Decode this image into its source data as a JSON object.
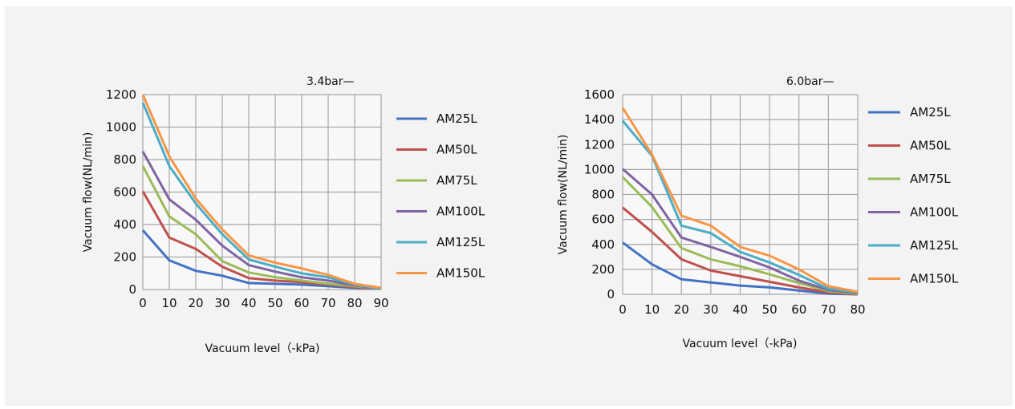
{
  "chart_data": [
    {
      "type": "line",
      "annotation": "3.4bar—",
      "xlabel": "Vacuum level（-kPa)",
      "ylabel": "Vacuum flow(NL/min)",
      "x": [
        0,
        10,
        20,
        30,
        40,
        50,
        60,
        70,
        80,
        90
      ],
      "xlim": [
        0,
        90
      ],
      "ylim": [
        0,
        1200
      ],
      "yticks": [
        0,
        200,
        400,
        600,
        800,
        1000,
        1200
      ],
      "grid": true,
      "legend_position": "right",
      "series": [
        {
          "name": "AM25L",
          "color": "#4472c4",
          "values": [
            365,
            180,
            115,
            85,
            40,
            35,
            30,
            20,
            10,
            5
          ]
        },
        {
          "name": "AM50L",
          "color": "#c0504d",
          "values": [
            605,
            320,
            250,
            140,
            70,
            55,
            45,
            30,
            15,
            5
          ]
        },
        {
          "name": "AM75L",
          "color": "#9bbb59",
          "values": [
            760,
            450,
            340,
            175,
            105,
            75,
            55,
            35,
            20,
            5
          ]
        },
        {
          "name": "AM100L",
          "color": "#8064a2",
          "values": [
            850,
            555,
            430,
            270,
            150,
            110,
            75,
            55,
            25,
            5
          ]
        },
        {
          "name": "AM125L",
          "color": "#4bacc6",
          "values": [
            1150,
            760,
            530,
            340,
            185,
            140,
            100,
            75,
            30,
            5
          ]
        },
        {
          "name": "AM150L",
          "color": "#f79646",
          "values": [
            1200,
            820,
            560,
            370,
            210,
            165,
            130,
            90,
            35,
            10
          ]
        }
      ]
    },
    {
      "type": "line",
      "annotation": "6.0bar—",
      "xlabel": "Vacuum level（-kPa)",
      "ylabel": "Vacuum flow(NL/min)",
      "x": [
        0,
        10,
        20,
        30,
        40,
        50,
        60,
        70,
        80
      ],
      "xlim": [
        0,
        80
      ],
      "ylim": [
        0,
        1600
      ],
      "yticks": [
        0,
        200,
        400,
        600,
        800,
        1000,
        1200,
        1400,
        1600
      ],
      "grid": true,
      "legend_position": "right",
      "series": [
        {
          "name": "AM25L",
          "color": "#4472c4",
          "values": [
            415,
            240,
            120,
            95,
            70,
            55,
            30,
            5,
            0
          ]
        },
        {
          "name": "AM50L",
          "color": "#c0504d",
          "values": [
            695,
            500,
            280,
            190,
            145,
            100,
            55,
            15,
            0
          ]
        },
        {
          "name": "AM75L",
          "color": "#9bbb59",
          "values": [
            940,
            700,
            370,
            280,
            225,
            160,
            90,
            25,
            5
          ]
        },
        {
          "name": "AM100L",
          "color": "#8064a2",
          "values": [
            1005,
            800,
            455,
            380,
            300,
            215,
            110,
            35,
            10
          ]
        },
        {
          "name": "AM125L",
          "color": "#4bacc6",
          "values": [
            1390,
            1110,
            550,
            490,
            340,
            255,
            155,
            45,
            15
          ]
        },
        {
          "name": "AM150L",
          "color": "#f79646",
          "values": [
            1495,
            1120,
            630,
            550,
            380,
            310,
            200,
            65,
            20
          ]
        }
      ]
    }
  ]
}
